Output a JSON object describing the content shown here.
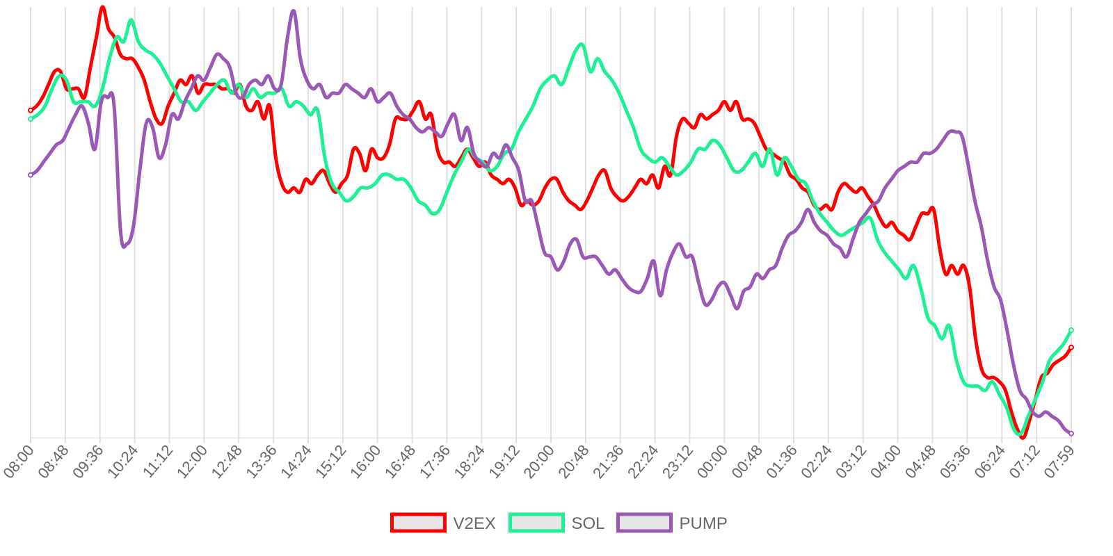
{
  "chart_data": {
    "type": "line",
    "title": "",
    "xlabel": "",
    "ylabel": "",
    "y_axis_labels": false,
    "ylim": [
      0,
      100
    ],
    "grid": {
      "vertical": true,
      "horizontal": false
    },
    "legend_position": "bottom",
    "x_tick_labels": [
      "08:00",
      "08:48",
      "09:36",
      "10:24",
      "11:12",
      "12:00",
      "12:48",
      "13:36",
      "14:24",
      "15:12",
      "16:00",
      "16:48",
      "17:36",
      "18:24",
      "19:12",
      "20:00",
      "20:48",
      "21:36",
      "22:24",
      "23:12",
      "00:00",
      "00:48",
      "01:36",
      "02:24",
      "03:12",
      "04:00",
      "04:48",
      "05:36",
      "06:24",
      "07:12",
      "07:59"
    ],
    "series": [
      {
        "name": "V2EX",
        "color": "#ff0000",
        "values": [
          76,
          77,
          79,
          82,
          85,
          85,
          81,
          81,
          81,
          79,
          86,
          93,
          100,
          95,
          93,
          89,
          88,
          88,
          86,
          83,
          78,
          74,
          73,
          77,
          80,
          83,
          82,
          84,
          80,
          82,
          82,
          82,
          81,
          81,
          80,
          82,
          77,
          76,
          78,
          74,
          77,
          65,
          59,
          57,
          58,
          57,
          60,
          59,
          61,
          62,
          59,
          57,
          59,
          61,
          67,
          66,
          62,
          67,
          65,
          65,
          68,
          74,
          74,
          74,
          76,
          78,
          74,
          75,
          67,
          64,
          64,
          63,
          65,
          67,
          65,
          63,
          64,
          61,
          60,
          59,
          60,
          58,
          54,
          55,
          54,
          55,
          58,
          60,
          60,
          57,
          55,
          54,
          53,
          55,
          58,
          61,
          62,
          58,
          56,
          55,
          56,
          58,
          60,
          59,
          61,
          58,
          63,
          61,
          70,
          74,
          73,
          72,
          75,
          74,
          75,
          76,
          78,
          76,
          78,
          74,
          74,
          73,
          70,
          67,
          66,
          65,
          64,
          61,
          60,
          58,
          57,
          54,
          53,
          54,
          53,
          57,
          59,
          58,
          57,
          58,
          56,
          54,
          51,
          49,
          50,
          48,
          47,
          46,
          49,
          52,
          52,
          53,
          44,
          38,
          40,
          38,
          40,
          35,
          23,
          16,
          14,
          14,
          13,
          11,
          6,
          2,
          0,
          4,
          9,
          14,
          15,
          17,
          18,
          19,
          21
        ],
        "marker_every": 0
      },
      {
        "name": "SOL",
        "color": "#1ef094",
        "values": [
          74,
          75,
          77,
          81,
          84,
          83,
          78,
          78,
          78,
          77,
          81,
          88,
          93,
          92,
          97,
          92,
          90,
          89,
          87,
          84,
          81,
          78,
          78,
          76,
          78,
          80,
          82,
          83,
          80,
          82,
          79,
          81,
          79,
          80,
          80,
          81,
          77,
          78,
          77,
          75,
          76,
          65,
          59,
          57,
          55,
          56,
          58,
          58,
          59,
          61,
          61,
          60,
          60,
          58,
          55,
          54,
          52,
          53,
          57,
          61,
          64,
          67,
          65,
          64,
          62,
          63,
          66,
          67,
          71,
          74,
          77,
          81,
          83,
          84,
          82,
          86,
          90,
          91,
          85,
          88,
          85,
          83,
          80,
          76,
          72,
          67,
          65,
          64,
          65,
          63,
          61,
          62,
          64,
          67,
          67,
          69,
          68,
          65,
          62,
          62,
          64,
          66,
          63,
          67,
          61,
          65,
          63,
          60,
          59,
          55,
          52,
          50,
          48,
          47,
          48,
          49,
          50,
          51,
          46,
          43,
          41,
          39,
          37,
          40,
          35,
          28,
          26,
          23,
          26,
          18,
          13,
          12,
          12,
          11,
          13,
          10,
          7,
          2,
          1,
          5,
          9,
          13,
          18,
          20,
          22,
          25
        ]
      },
      {
        "name": "PUMP",
        "color": "#9b59b6",
        "values": [
          61,
          62,
          64,
          66,
          68,
          69,
          72,
          75,
          77,
          73,
          67,
          78,
          79,
          77,
          48,
          45,
          49,
          62,
          73,
          72,
          65,
          68,
          75,
          74,
          78,
          81,
          84,
          83,
          86,
          89,
          88,
          86,
          80,
          79,
          82,
          83,
          82,
          84,
          81,
          82,
          93,
          99,
          88,
          83,
          81,
          82,
          79,
          80,
          80,
          82,
          81,
          80,
          79,
          81,
          78,
          79,
          80,
          77,
          75,
          74,
          72,
          71,
          72,
          71,
          70,
          73,
          75,
          69,
          72,
          66,
          64,
          63,
          66,
          65,
          68,
          65,
          62,
          55,
          55,
          49,
          43,
          42,
          39,
          41,
          45,
          46,
          42,
          42,
          42,
          40,
          38,
          39,
          37,
          35,
          34,
          34,
          37,
          41,
          33,
          39,
          43,
          45,
          42,
          42,
          36,
          31,
          32,
          35,
          36,
          33,
          30,
          34,
          35,
          38,
          37,
          39,
          40,
          44,
          47,
          48,
          50,
          53,
          50,
          48,
          47,
          45,
          44,
          42,
          46,
          50,
          52,
          54,
          55,
          58,
          60,
          62,
          63,
          64,
          64,
          66,
          66,
          67,
          69,
          71,
          71,
          70,
          63,
          55,
          49,
          41,
          35,
          32,
          25,
          17,
          11,
          9,
          6,
          5,
          6,
          5,
          4,
          2,
          1
        ]
      }
    ]
  }
}
